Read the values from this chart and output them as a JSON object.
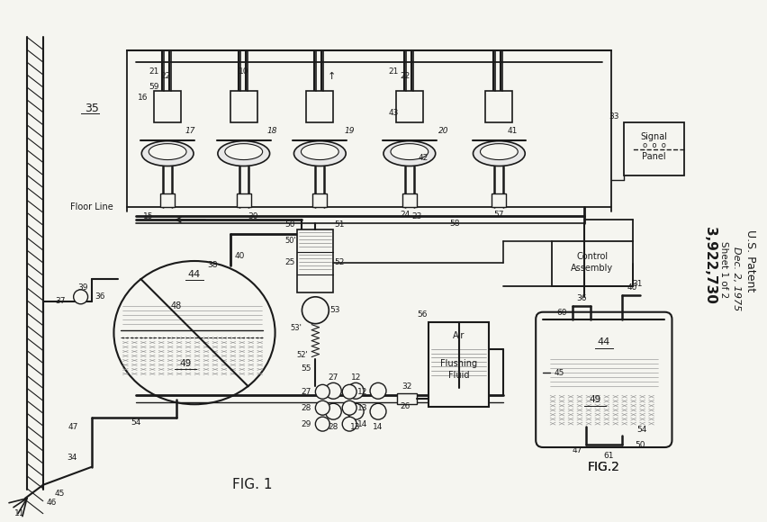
{
  "bg_color": "#f5f5f0",
  "line_color": "#1a1a1a",
  "title_texts": {
    "patent": "U.S. Patent",
    "date": "Dec. 2, 1975",
    "sheet": "Sheet 1 of 2",
    "number": "3,922,730",
    "fig1": "FIG. 1",
    "fig2": "FIG. 2"
  }
}
